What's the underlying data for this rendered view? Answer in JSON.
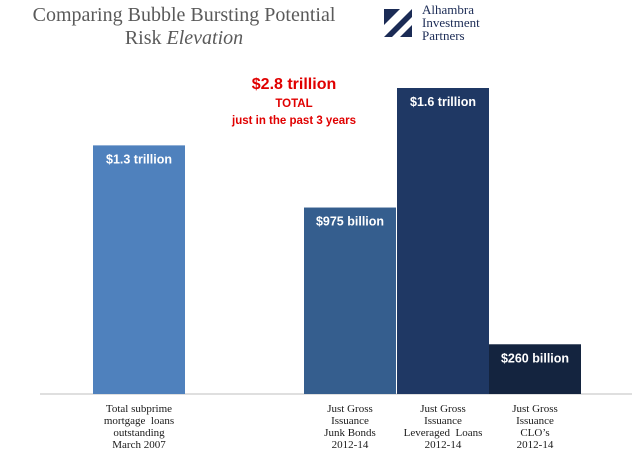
{
  "header": {
    "title_line1": "Comparing Bubble Bursting Potential",
    "title_line2_prefix": "Risk ",
    "title_line2_emphasis": "Elevation"
  },
  "logo": {
    "lines": [
      "Alhambra",
      "Investment",
      "Partners"
    ],
    "accent_color": "#1b2b55"
  },
  "annotation": {
    "amount": "$2.8 trillion",
    "label": "TOTAL",
    "note": "just in the past 3 years",
    "color": "#e00000"
  },
  "chart_data": {
    "type": "bar",
    "title": "",
    "xlabel": "",
    "ylabel": "",
    "ylim": [
      0,
      1.6
    ],
    "grid": false,
    "legend": "none",
    "categories": [
      [
        "Total subprime",
        "mortgage  loans",
        "outstanding",
        "March 2007"
      ],
      [
        "Just Gross",
        "Issuance",
        "Junk Bonds",
        "2012-14"
      ],
      [
        "Just Gross",
        "Issuance",
        "Leveraged  Loans",
        "2012-14"
      ],
      [
        "Just Gross",
        "Issuance",
        "CLO’s",
        "2012-14"
      ]
    ],
    "values": [
      1.3,
      0.975,
      1.6,
      0.26
    ],
    "units": "trillion USD",
    "data_labels": [
      "$1.3 trillion",
      "$975 billion",
      "$1.6 trillion",
      "$260 billion"
    ],
    "colors": [
      "#4f81bd",
      "#355e8e",
      "#1f3864",
      "#14243f"
    ]
  }
}
